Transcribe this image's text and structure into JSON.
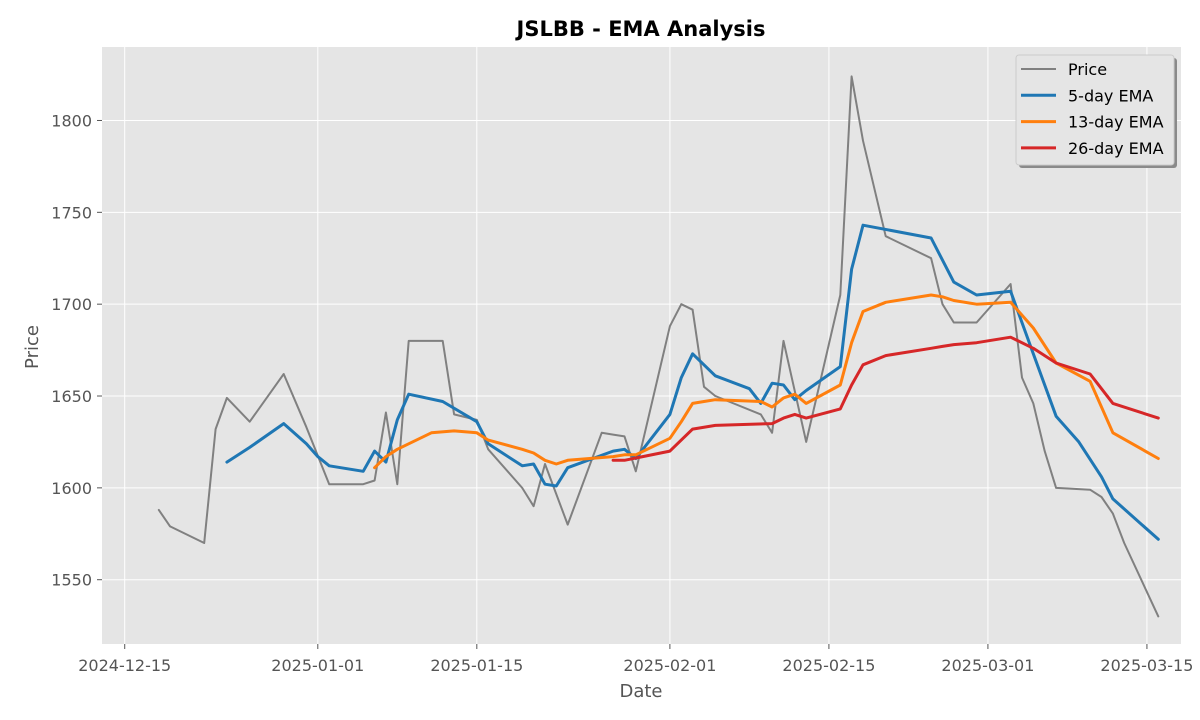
{
  "chart_data": {
    "type": "line",
    "title": "JSLBB - EMA Analysis",
    "xlabel": "Date",
    "ylabel": "Price",
    "xlim": [
      "2024-12-13",
      "2025-03-18"
    ],
    "ylim": [
      1515,
      1840
    ],
    "x_ticks": [
      "2024-12-15",
      "2025-01-01",
      "2025-01-15",
      "2025-02-01",
      "2025-02-15",
      "2025-03-01",
      "2025-03-15"
    ],
    "y_ticks": [
      1550,
      1600,
      1650,
      1700,
      1750,
      1800
    ],
    "grid": true,
    "legend_position": "top-right",
    "series": [
      {
        "name": "Price",
        "color": "#808080",
        "x": [
          "2024-12-18",
          "2024-12-19",
          "2024-12-22",
          "2024-12-23",
          "2024-12-24",
          "2024-12-26",
          "2024-12-29",
          "2024-12-31",
          "2025-01-02",
          "2025-01-05",
          "2025-01-06",
          "2025-01-07",
          "2025-01-08",
          "2025-01-09",
          "2025-01-12",
          "2025-01-13",
          "2025-01-15",
          "2025-01-16",
          "2025-01-19",
          "2025-01-20",
          "2025-01-21",
          "2025-01-23",
          "2025-01-26",
          "2025-01-27",
          "2025-01-28",
          "2025-01-29",
          "2025-02-01",
          "2025-02-02",
          "2025-02-03",
          "2025-02-04",
          "2025-02-05",
          "2025-02-09",
          "2025-02-10",
          "2025-02-11",
          "2025-02-13",
          "2025-02-16",
          "2025-02-17",
          "2025-02-18",
          "2025-02-20",
          "2025-02-24",
          "2025-02-25",
          "2025-02-26",
          "2025-02-28",
          "2025-03-03",
          "2025-03-04",
          "2025-03-05",
          "2025-03-06",
          "2025-03-07",
          "2025-03-10",
          "2025-03-11",
          "2025-03-12",
          "2025-03-13",
          "2025-03-16"
        ],
        "values": [
          1588,
          1579,
          1570,
          1632,
          1649,
          1636,
          1662,
          1633,
          1602,
          1602,
          1604,
          1641,
          1602,
          1680,
          1680,
          1640,
          1637,
          1621,
          1600,
          1590,
          1613,
          1580,
          1630,
          1629,
          1628,
          1609,
          1688,
          1700,
          1697,
          1655,
          1650,
          1640,
          1630,
          1680,
          1625,
          1705,
          1824,
          1789,
          1737,
          1725,
          1700,
          1690,
          1690,
          1711,
          1660,
          1646,
          1620,
          1600,
          1599,
          1595,
          1586,
          1570,
          1530
        ]
      },
      {
        "name": "5-day EMA",
        "color": "#1f77b4",
        "x": [
          "2024-12-24",
          "2024-12-26",
          "2024-12-29",
          "2024-12-31",
          "2025-01-01",
          "2025-01-02",
          "2025-01-05",
          "2025-01-06",
          "2025-01-07",
          "2025-01-08",
          "2025-01-09",
          "2025-01-12",
          "2025-01-15",
          "2025-01-16",
          "2025-01-19",
          "2025-01-20",
          "2025-01-21",
          "2025-01-22",
          "2025-01-23",
          "2025-01-27",
          "2025-01-28",
          "2025-01-29",
          "2025-02-01",
          "2025-02-02",
          "2025-02-03",
          "2025-02-05",
          "2025-02-08",
          "2025-02-09",
          "2025-02-10",
          "2025-02-11",
          "2025-02-12",
          "2025-02-13",
          "2025-02-16",
          "2025-02-17",
          "2025-02-18",
          "2025-02-24",
          "2025-02-26",
          "2025-02-28",
          "2025-03-03",
          "2025-03-05",
          "2025-03-07",
          "2025-03-09",
          "2025-03-11",
          "2025-03-12",
          "2025-03-16"
        ],
        "values": [
          1614,
          1622,
          1635,
          1624,
          1617,
          1612,
          1609,
          1620,
          1614,
          1637,
          1651,
          1647,
          1636,
          1624,
          1612,
          1613,
          1602,
          1601,
          1611,
          1620,
          1621,
          1616,
          1640,
          1660,
          1673,
          1661,
          1654,
          1646,
          1657,
          1656,
          1648,
          1653,
          1666,
          1719,
          1743,
          1736,
          1712,
          1705,
          1707,
          1673,
          1639,
          1625,
          1606,
          1594,
          1572
        ]
      },
      {
        "name": "13-day EMA",
        "color": "#ff7f0e",
        "x": [
          "2025-01-06",
          "2025-01-07",
          "2025-01-08",
          "2025-01-11",
          "2025-01-13",
          "2025-01-15",
          "2025-01-16",
          "2025-01-19",
          "2025-01-20",
          "2025-01-21",
          "2025-01-22",
          "2025-01-23",
          "2025-01-27",
          "2025-01-28",
          "2025-01-29",
          "2025-02-01",
          "2025-02-02",
          "2025-02-03",
          "2025-02-04",
          "2025-02-05",
          "2025-02-09",
          "2025-02-10",
          "2025-02-11",
          "2025-02-12",
          "2025-02-13",
          "2025-02-16",
          "2025-02-17",
          "2025-02-18",
          "2025-02-20",
          "2025-02-24",
          "2025-02-25",
          "2025-02-26",
          "2025-02-28",
          "2025-03-03",
          "2025-03-05",
          "2025-03-07",
          "2025-03-10",
          "2025-03-12",
          "2025-03-16"
        ],
        "values": [
          1611,
          1617,
          1621,
          1630,
          1631,
          1630,
          1626,
          1621,
          1619,
          1615,
          1613,
          1615,
          1617,
          1618,
          1618,
          1627,
          1636,
          1646,
          1647,
          1648,
          1647,
          1644,
          1649,
          1651,
          1646,
          1656,
          1679,
          1696,
          1701,
          1705,
          1704,
          1702,
          1700,
          1701,
          1687,
          1668,
          1658,
          1630,
          1616
        ]
      },
      {
        "name": "26-day EMA",
        "color": "#d62728",
        "x": [
          "2025-01-27",
          "2025-01-28",
          "2025-02-01",
          "2025-02-03",
          "2025-02-05",
          "2025-02-10",
          "2025-02-11",
          "2025-02-12",
          "2025-02-13",
          "2025-02-16",
          "2025-02-17",
          "2025-02-18",
          "2025-02-20",
          "2025-02-24",
          "2025-02-25",
          "2025-02-26",
          "2025-02-28",
          "2025-03-03",
          "2025-03-05",
          "2025-03-07",
          "2025-03-10",
          "2025-03-12",
          "2025-03-16"
        ],
        "values": [
          1615,
          1615,
          1620,
          1632,
          1634,
          1635,
          1638,
          1640,
          1638,
          1643,
          1656,
          1667,
          1672,
          1676,
          1677,
          1678,
          1679,
          1682,
          1676,
          1668,
          1662,
          1646,
          1638
        ]
      }
    ]
  }
}
